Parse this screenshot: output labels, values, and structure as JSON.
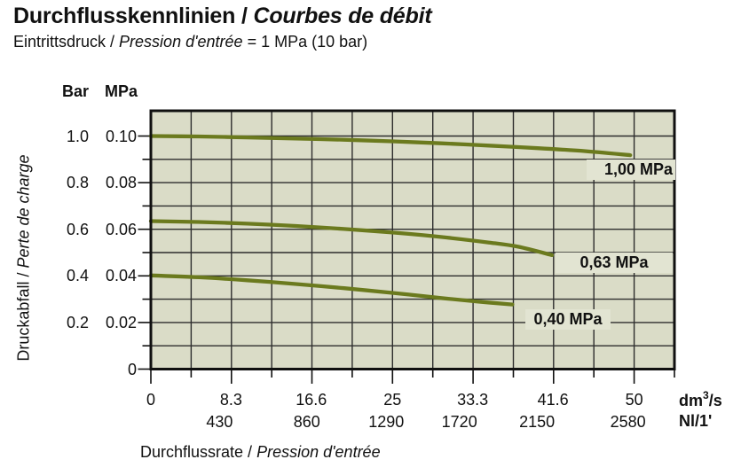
{
  "title": {
    "de": "Durchflusskennlinien",
    "sep": " / ",
    "fr": "Courbes de débit"
  },
  "subtitle": {
    "de": "Eintrittsdruck",
    "sep": " / ",
    "fr": "Pression d'entrée",
    "value": "= 1 MPa (10 bar)"
  },
  "y_axis": {
    "header_bar": "Bar",
    "header_mpa": "MPa",
    "label_de": "Druckabfall",
    "label_sep": " / ",
    "label_fr": "Perte de charge",
    "tick_labels_bar": [
      "1.0",
      "0.8",
      "0.6",
      "0.4",
      "0.2"
    ],
    "tick_labels_mpa": [
      "0.10",
      "0.08",
      "0.06",
      "0.04",
      "0.02",
      "0"
    ]
  },
  "x_axis": {
    "label_de": "Durchflussrate",
    "label_sep": " / ",
    "label_fr": "Pression d'entrée",
    "tick_labels_dm3s": [
      "0",
      "8.3",
      "16.6",
      "25",
      "33.3",
      "41.6",
      "50"
    ],
    "tick_labels_nl": [
      "430",
      "860",
      "1290",
      "1720",
      "2150",
      "2580"
    ],
    "unit1_base": "dm",
    "unit1_sup": "3",
    "unit1_rest": "/s",
    "unit2": "Nl/1'"
  },
  "colors": {
    "plot_bg": "#dadcc7",
    "grid": "#2d2d2d",
    "border": "#101010",
    "curve": "#6b7a1e",
    "label_badge_bg": "#e2e4d2",
    "text": "#111111"
  },
  "chart_data": {
    "type": "line",
    "title": "Durchflusskennlinien / Courbes de débit",
    "subtitle": "Eintrittsdruck / Pression d'entrée = 1 MPa (10 bar)",
    "xlabel": "Durchflussrate / Pression d'entrée",
    "ylabel": "Druckabfall / Perte de charge",
    "x_unit_primary": "dm³/s",
    "x_unit_secondary": "Nl/1'",
    "y_unit_primary": "MPa",
    "y_unit_secondary": "Bar",
    "xlim_dm3s": [
      0,
      54.2
    ],
    "ylim_mpa": [
      0,
      0.111
    ],
    "grid": true,
    "legend_position": "inline-right",
    "x_ticks_dm3s": [
      0,
      8.3,
      16.6,
      25,
      33.3,
      41.6,
      50
    ],
    "x_ticks_nl": [
      430,
      860,
      1290,
      1720,
      2150,
      2580
    ],
    "y_ticks_mpa": [
      0.1,
      0.08,
      0.06,
      0.04,
      0.02,
      0
    ],
    "y_ticks_bar": [
      1.0,
      0.8,
      0.6,
      0.4,
      0.2
    ],
    "series": [
      {
        "name": "1,00 MPa",
        "inlet_pressure_mpa": 1.0,
        "points": [
          [
            0,
            0.1
          ],
          [
            5,
            0.0998
          ],
          [
            10,
            0.0994
          ],
          [
            15,
            0.0989
          ],
          [
            20,
            0.0984
          ],
          [
            25,
            0.0977
          ],
          [
            30,
            0.0969
          ],
          [
            35,
            0.0959
          ],
          [
            40,
            0.0948
          ],
          [
            45,
            0.0935
          ],
          [
            49.6,
            0.0918
          ]
        ]
      },
      {
        "name": "0,63 MPa",
        "inlet_pressure_mpa": 0.63,
        "points": [
          [
            0,
            0.0635
          ],
          [
            5,
            0.0631
          ],
          [
            10,
            0.0624
          ],
          [
            15,
            0.0614
          ],
          [
            20,
            0.0601
          ],
          [
            25,
            0.0586
          ],
          [
            30,
            0.0567
          ],
          [
            35,
            0.0543
          ],
          [
            38,
            0.0525
          ],
          [
            41.5,
            0.0489
          ]
        ]
      },
      {
        "name": "0,40 MPa",
        "inlet_pressure_mpa": 0.4,
        "points": [
          [
            0,
            0.0402
          ],
          [
            5,
            0.0394
          ],
          [
            10,
            0.0381
          ],
          [
            15,
            0.0365
          ],
          [
            20,
            0.0347
          ],
          [
            25,
            0.0327
          ],
          [
            30,
            0.0305
          ],
          [
            34,
            0.0289
          ],
          [
            37.4,
            0.0277
          ]
        ]
      }
    ]
  }
}
